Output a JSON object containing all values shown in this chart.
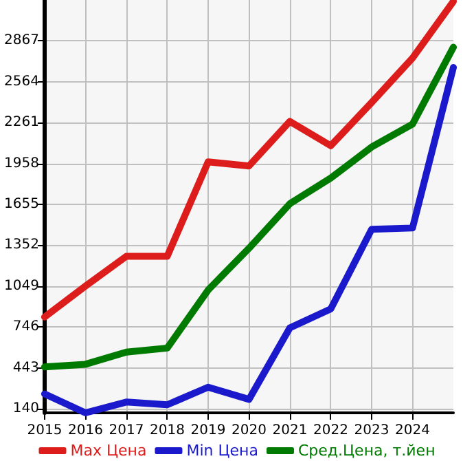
{
  "chart_data": {
    "type": "line",
    "x": [
      2015,
      2016,
      2017,
      2018,
      2019,
      2020,
      2021,
      2022,
      2023,
      2024,
      2025
    ],
    "series": [
      {
        "name": "Max Цена",
        "color": "#dd1c1c",
        "values": [
          820,
          1050,
          1270,
          1270,
          1970,
          1940,
          2270,
          2090,
          2410,
          2740,
          3160
        ]
      },
      {
        "name": "Min Цена",
        "color": "#1a1acc",
        "values": [
          250,
          110,
          190,
          170,
          300,
          210,
          740,
          880,
          1470,
          1480,
          2670
        ]
      },
      {
        "name": "Сред.Цена, т.йен",
        "color": "#007a00",
        "values": [
          450,
          470,
          560,
          590,
          1020,
          1330,
          1660,
          1850,
          2080,
          2250,
          2820
        ]
      }
    ],
    "xlim": [
      2015,
      2025
    ],
    "xticks": [
      2015,
      2016,
      2017,
      2018,
      2019,
      2020,
      2021,
      2022,
      2023,
      2024
    ],
    "ylim": [
      110,
      3170
    ],
    "yticks": [
      140,
      443,
      746,
      1049,
      1352,
      1655,
      1958,
      2261,
      2564,
      2867
    ],
    "grid": true,
    "legend": "bottom",
    "marker": "none",
    "line_style": "solid"
  }
}
